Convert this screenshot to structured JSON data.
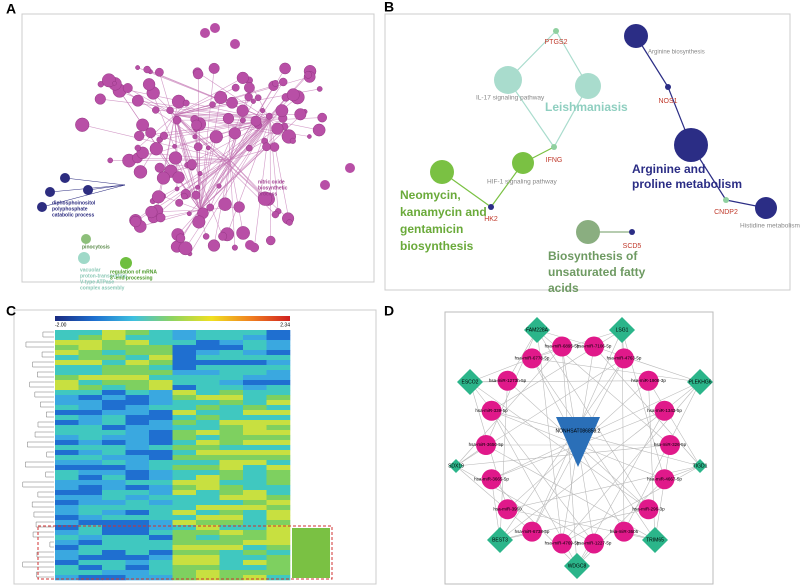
{
  "panel_labels": [
    "A",
    "B",
    "C",
    "D"
  ],
  "panel_a": {
    "labels": [
      [
        "diphosphoinositol",
        "polyphosphate",
        "catabolic process"
      ],
      [
        "pinocytosis"
      ],
      [
        "vacuolar",
        "proton-transporting",
        "V-type ATPase",
        "complex assembly"
      ],
      [
        "regulation of mRNA",
        "3'-end processing"
      ],
      [
        "nitric oxide",
        "biosynthetic",
        "process"
      ]
    ]
  },
  "panel_b": {
    "pathways": [
      {
        "label": [
          "Arginine biosynthesis"
        ]
      },
      {
        "label": [
          "IL-17 signaling pathway"
        ]
      },
      {
        "label": [
          "Leishmaniasis"
        ]
      },
      {
        "label": [
          "HIF-1 signaling pathway"
        ]
      },
      {
        "label": [
          "Neomycin,",
          "kanamycin and",
          "gentamicin",
          "biosynthesis"
        ]
      },
      {
        "label": [
          "Arginine and",
          "proline metabolism"
        ]
      },
      {
        "label": [
          "Histidine metabolism"
        ]
      },
      {
        "label": [
          "Biosynthesis of",
          "unsaturated fatty",
          "acids"
        ]
      }
    ],
    "genes": [
      "PTGS2",
      "NOS1",
      "IFNG",
      "HK2",
      "CNDP2",
      "SCD5"
    ]
  },
  "panel_c": {
    "scale_min": "-2.00",
    "scale_max": "2.34"
  },
  "panel_d": {
    "center": "NONHSAT086858.2",
    "genes": [
      "FAM228A",
      "LSG1",
      "ESCO2",
      "PLEKHG6",
      "SDX19",
      "TIGD1",
      "BEST3",
      "TRIM65",
      "WDGC8"
    ],
    "mirnas": [
      "hsa-miR-7106-5p",
      "hsa-miR-4763-5p",
      "hsa-miR-1908-3p",
      "hsa-miR-1343-5p",
      "hsa-miR-326-5p",
      "hsa-miR-4667-5p",
      "hsa-miR-296-3p",
      "hsa-miR-3605",
      "hsa-miR-1227-5p",
      "hsa-miR-4769-5p",
      "hsa-miR-6738-5p",
      "hsa-miR-3960",
      "hsa-miR-3665-5p",
      "hsa-miR-3650-5p",
      "hsa-miR-339-5p",
      "hsa-miR-1273h-5p",
      "hsa-miR-6778-5p",
      "hsa-miR-6895-5p"
    ]
  }
}
